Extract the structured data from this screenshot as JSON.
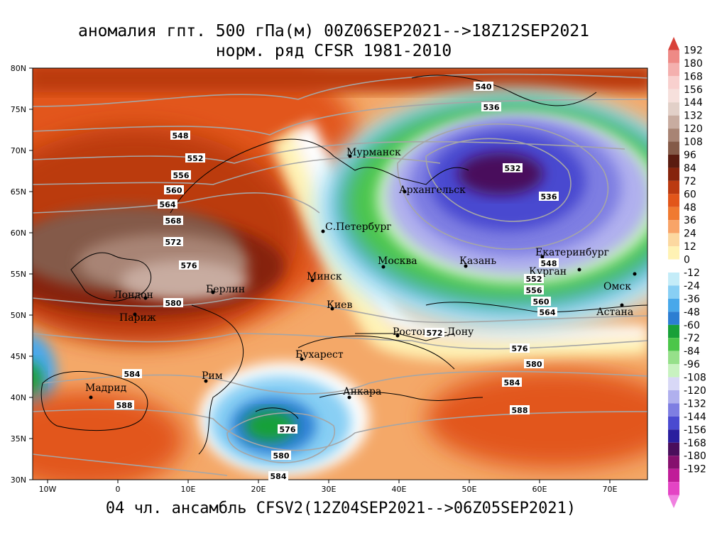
{
  "title": {
    "line1": "аномалия гпт. 500 гПа(м) 00Z06SEP2021-->18Z12SEP2021",
    "line2": "норм. ряд CFSR 1981-2010"
  },
  "footer": "04 чл. ансамбль CFSV2(12Z04SEP2021-->06Z05SEP2021)",
  "axes": {
    "lat_labels": [
      "80N",
      "75N",
      "70N",
      "65N",
      "60N",
      "55N",
      "50N",
      "45N",
      "40N",
      "35N",
      "30N"
    ],
    "lon_labels": [
      "10W",
      "0",
      "10E",
      "20E",
      "30E",
      "40E",
      "50E",
      "60E",
      "70E"
    ]
  },
  "cities": [
    {
      "name": "Мурманск"
    },
    {
      "name": "Архангельск"
    },
    {
      "name": "С.Петербург"
    },
    {
      "name": "Москва"
    },
    {
      "name": "Казань"
    },
    {
      "name": "Екатеринбург"
    },
    {
      "name": "Курган"
    },
    {
      "name": "Омск"
    },
    {
      "name": "Астана"
    },
    {
      "name": "Минск"
    },
    {
      "name": "Киев"
    },
    {
      "name": "Берлин"
    },
    {
      "name": "Лондон"
    },
    {
      "name": "Париж"
    },
    {
      "name": "Ростов-на-Дону"
    },
    {
      "name": "Бухарест"
    },
    {
      "name": "Рим"
    },
    {
      "name": "Мадрид"
    },
    {
      "name": "Анкара"
    }
  ],
  "contour_labels": [
    "540",
    "536",
    "548",
    "552",
    "556",
    "560",
    "564",
    "568",
    "572",
    "576",
    "580",
    "584",
    "588",
    "532",
    "536",
    "548",
    "552",
    "556",
    "560",
    "564",
    "572",
    "576",
    "580",
    "584",
    "584",
    "588",
    "576",
    "580",
    "584",
    "588"
  ],
  "colorbar": {
    "ticks": [
      "192",
      "180",
      "168",
      "156",
      "144",
      "132",
      "120",
      "108",
      "96",
      "84",
      "72",
      "60",
      "48",
      "36",
      "24",
      "12",
      "0",
      "-12",
      "-24",
      "-36",
      "-48",
      "-60",
      "-72",
      "-84",
      "-96",
      "-108",
      "-120",
      "-132",
      "-144",
      "-156",
      "-168",
      "-180",
      "-192"
    ],
    "colors": [
      "#d8423a",
      "#ee8a86",
      "#f4b0ae",
      "#f8d0ce",
      "#f6e0dc",
      "#e2d0c8",
      "#c8aca0",
      "#a88474",
      "#845a48",
      "#5a1c10",
      "#86240c",
      "#bb3a10",
      "#e2561a",
      "#f07a30",
      "#f8a468",
      "#fcd8a0",
      "#fff2b4",
      "#ffffff",
      "#c4ecf8",
      "#88cff4",
      "#48a8ea",
      "#2c7ed2",
      "#18a038",
      "#4cc64a",
      "#96e08a",
      "#c8f2c0",
      "#d8d8f6",
      "#b0b0ee",
      "#7e7ee2",
      "#4a4ad0",
      "#2a1e9e",
      "#4a0e5c",
      "#86106e",
      "#c01c98",
      "#e444c4",
      "#f080e0"
    ]
  },
  "meta_colors": {
    "contour": "#a6a6a6",
    "coast": "#000000"
  }
}
